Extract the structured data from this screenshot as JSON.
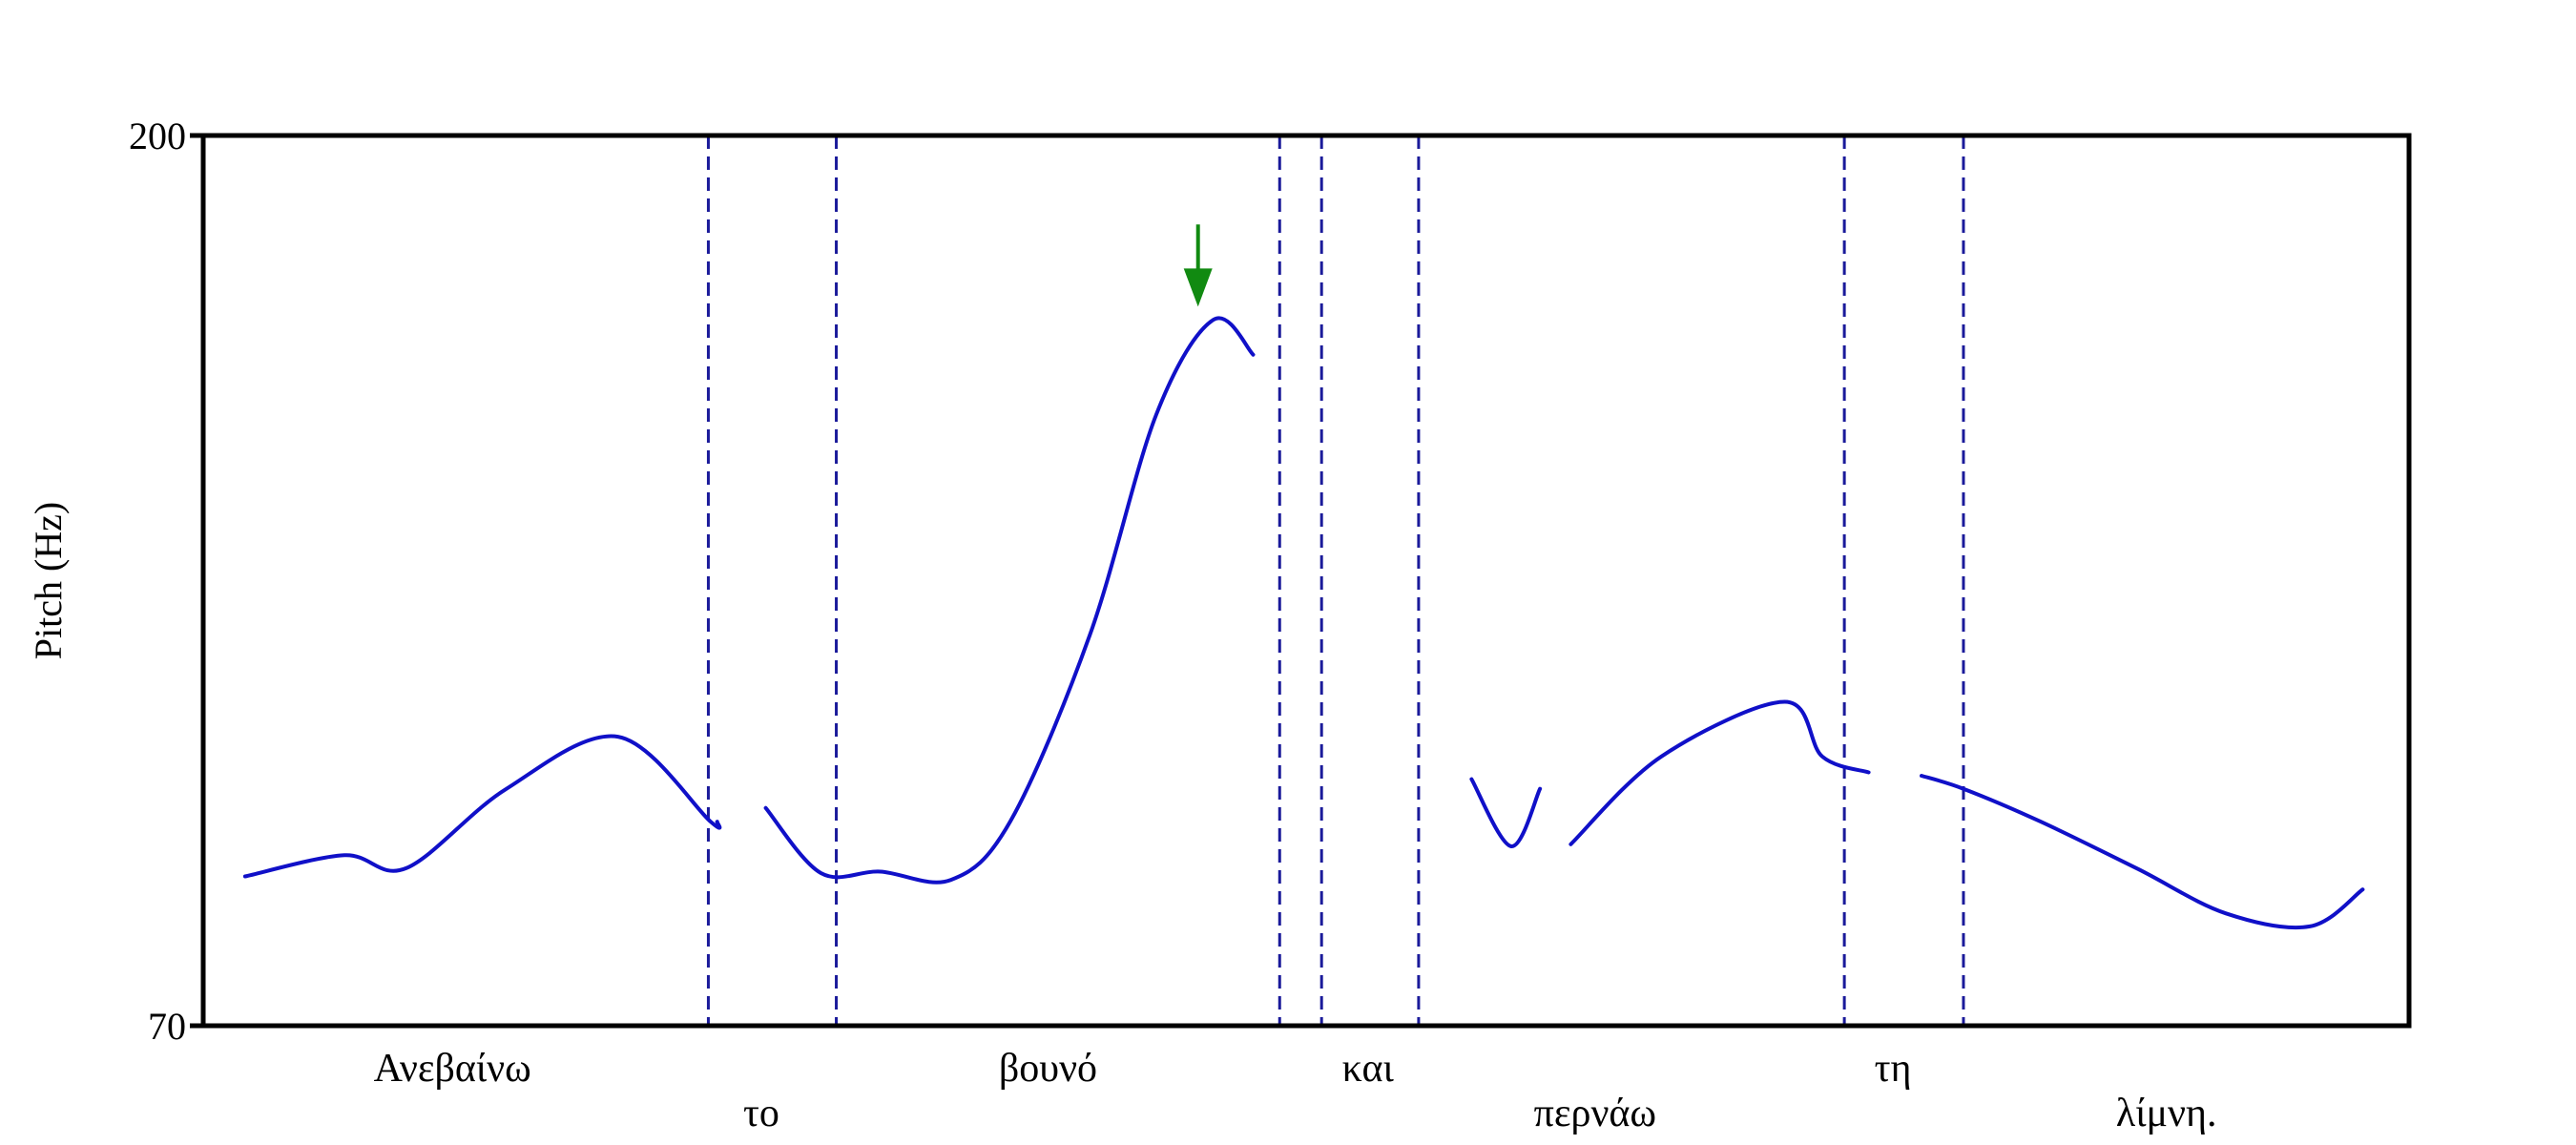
{
  "chart_data": {
    "type": "line",
    "title": "",
    "xlabel": "",
    "ylabel": "Pitch (Hz)",
    "ylim": [
      70,
      200
    ],
    "yticks": [
      200,
      70
    ],
    "grid": false,
    "line_color": "#1010c8",
    "boundary_color": "#1a1a9a",
    "arrow_color": "#118a11",
    "words": [
      {
        "text": "Ανεβαίνω",
        "row": 0
      },
      {
        "text": "το",
        "row": 1
      },
      {
        "text": "βουνό",
        "row": 0
      },
      {
        "text": "και",
        "row": 0
      },
      {
        "text": "περνάω",
        "row": 1
      },
      {
        "text": "τη",
        "row": 0
      },
      {
        "text": "λίμνη.",
        "row": 1
      }
    ],
    "boundaries_x": [
      0.229,
      0.287,
      0.488,
      0.507,
      0.551,
      0.744,
      0.798
    ],
    "word_label_x": [
      0.113,
      0.253,
      0.383,
      0.528,
      0.631,
      0.766,
      0.89
    ],
    "series": [
      {
        "values": [
          [
            0.019,
            91.8
          ],
          [
            0.064,
            94.9
          ],
          [
            0.092,
            93.0
          ],
          [
            0.137,
            104.5
          ],
          [
            0.188,
            112.2
          ],
          [
            0.23,
            99.8
          ],
          [
            0.233,
            99.8
          ]
        ]
      },
      {
        "values": [
          [
            0.255,
            101.8
          ],
          [
            0.28,
            92.3
          ],
          [
            0.307,
            92.5
          ],
          [
            0.339,
            91.3
          ],
          [
            0.366,
            99.9
          ],
          [
            0.402,
            127.1
          ],
          [
            0.432,
            159.2
          ],
          [
            0.458,
            173.1
          ],
          [
            0.476,
            168.0
          ]
        ]
      },
      {
        "values": [
          [
            0.575,
            106.0
          ],
          [
            0.593,
            96.2
          ],
          [
            0.606,
            104.6
          ]
        ]
      },
      {
        "values": [
          [
            0.62,
            96.5
          ],
          [
            0.661,
            109.3
          ],
          [
            0.717,
            117.3
          ],
          [
            0.734,
            109.3
          ],
          [
            0.755,
            107.0
          ]
        ]
      },
      {
        "values": [
          [
            0.779,
            106.5
          ],
          [
            0.798,
            104.6
          ],
          [
            0.833,
            99.8
          ],
          [
            0.877,
            92.9
          ],
          [
            0.917,
            86.4
          ],
          [
            0.955,
            84.5
          ],
          [
            0.979,
            89.9
          ]
        ]
      }
    ],
    "annotation_arrow": {
      "x": 0.451,
      "y_from": 187,
      "y_to": 175
    }
  }
}
